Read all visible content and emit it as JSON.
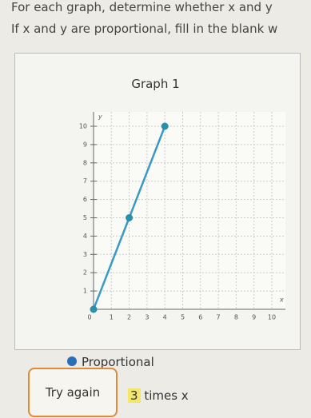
{
  "instructions": [
    "For each graph, determine whether x and y",
    "If x and y are proportional, fill in the blank w"
  ],
  "chart_data": {
    "type": "line",
    "title": "Graph 1",
    "x_label": "x",
    "y_label": "y",
    "x": [
      0,
      2,
      4
    ],
    "values": [
      0,
      5,
      10
    ],
    "color": "#3a9ac4",
    "xlim": [
      0,
      10
    ],
    "ylim": [
      0,
      10
    ],
    "xticks": [
      0,
      1,
      2,
      3,
      4,
      5,
      6,
      7,
      8,
      9,
      10
    ],
    "yticks": [
      1,
      2,
      3,
      4,
      5,
      6,
      7,
      8,
      9,
      10
    ],
    "grid": true
  },
  "option": "Proportional",
  "button": "Try again",
  "answer": {
    "value": "3",
    "suffix": "times x"
  }
}
